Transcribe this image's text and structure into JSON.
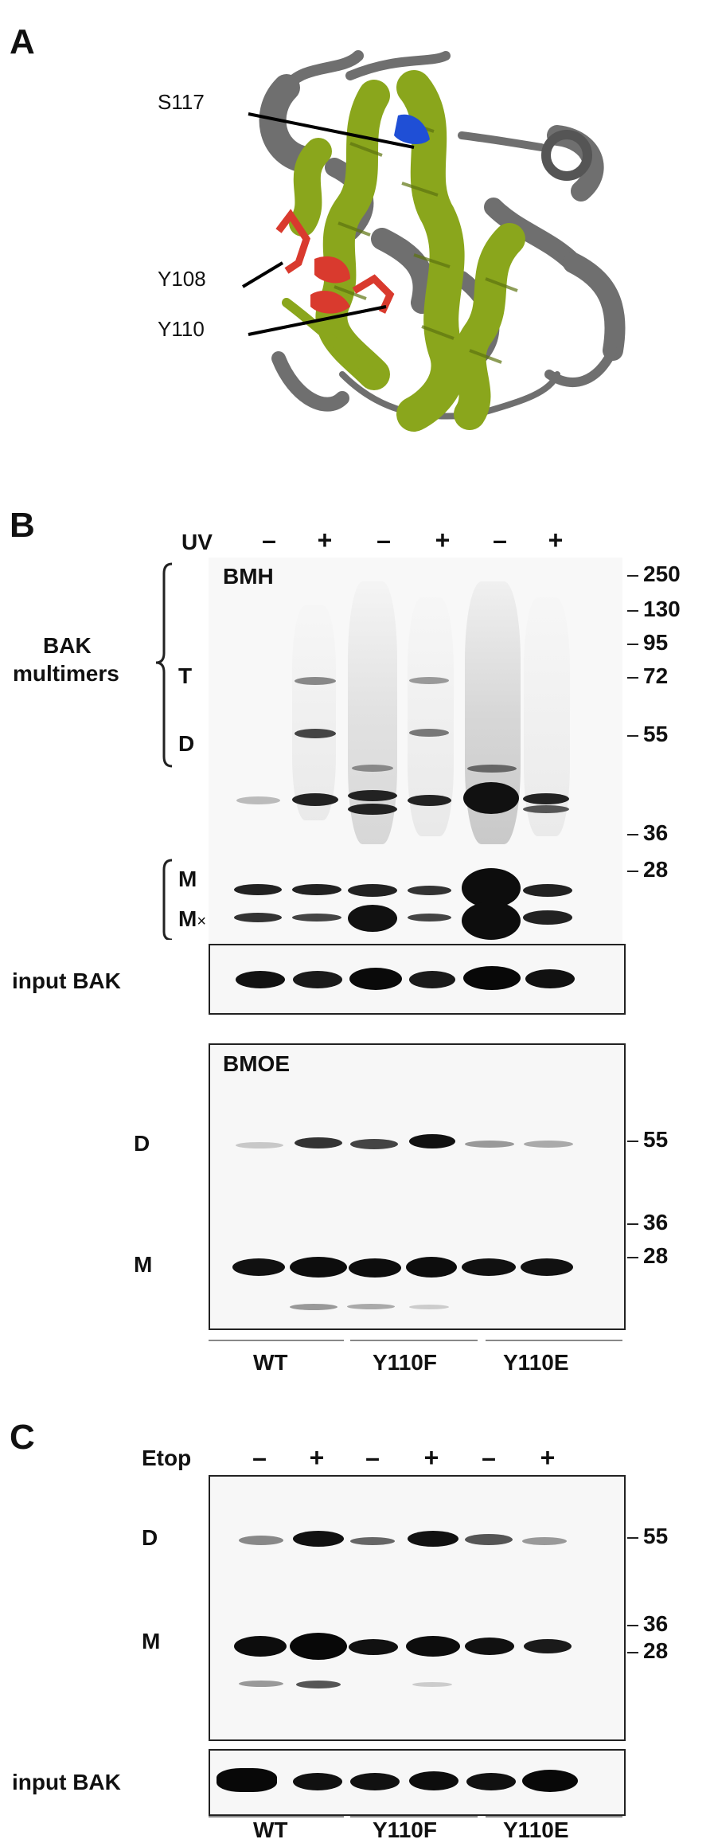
{
  "panelA": {
    "letter": "A",
    "residues": [
      "S117",
      "Y108",
      "Y110"
    ],
    "colors": {
      "helix_green": "#8aa61c",
      "coil_gray": "#6f6f6f",
      "highlight_blue": "#1f4fd6",
      "highlight_red": "#d93a2e"
    }
  },
  "panelB": {
    "letter": "B",
    "treatment_label": "UV",
    "signs": [
      "–",
      "+",
      "–",
      "+",
      "–",
      "+"
    ],
    "bmh_title": "BMH",
    "bak_multimers_line1": "BAK",
    "bak_multimers_line2": "multimers",
    "band_labels": {
      "T": "T",
      "D": "D",
      "M": "M",
      "Mx_base": "M",
      "Mx_sub": "×"
    },
    "mw_top": [
      "250",
      "130",
      "95",
      "72",
      "55",
      "36",
      "28"
    ],
    "input_label": "input BAK",
    "bmoe_title": "BMOE",
    "bmoe_D": "D",
    "bmoe_M": "M",
    "mw_bmoe": [
      "55",
      "36",
      "28"
    ],
    "groups": [
      "WT",
      "Y110F",
      "Y110E"
    ]
  },
  "panelC": {
    "letter": "C",
    "treatment_label": "Etop",
    "signs": [
      "–",
      "+",
      "–",
      "+",
      "–",
      "+"
    ],
    "D": "D",
    "M": "M",
    "mw": [
      "55",
      "36",
      "28"
    ],
    "input_label": "input BAK",
    "groups": [
      "WT",
      "Y110F",
      "Y110E"
    ]
  }
}
